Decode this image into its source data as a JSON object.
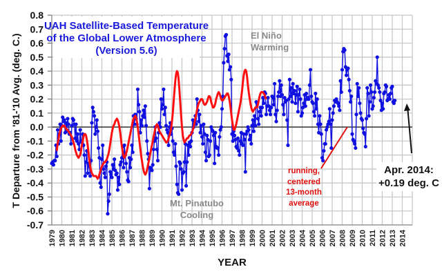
{
  "chart_data": {
    "type": "line",
    "title": [
      "UAH Satellite-Based Temperature",
      "of the Global Lower Atmosphere",
      "(Version 5.6)"
    ],
    "xlabel": "YEAR",
    "ylabel": "T Departure from '81-'10 Avg. (deg. C.)",
    "ylim": [
      -0.7,
      0.8
    ],
    "xlim": [
      1979,
      2015
    ],
    "yticks": [
      "0.8",
      "0.7",
      "0.6",
      "0.5",
      "0.4",
      "0.3",
      "0.2",
      "0.1",
      "0.0",
      "-0.1",
      "-0.2",
      "-0.3",
      "-0.4",
      "-0.5",
      "-0.6",
      "-0.7"
    ],
    "ytick_values": [
      0.8,
      0.7,
      0.6,
      0.5,
      0.4,
      0.3,
      0.2,
      0.1,
      0.0,
      -0.1,
      -0.2,
      -0.3,
      -0.4,
      -0.5,
      -0.6,
      -0.7
    ],
    "xticks": [
      "1979",
      "1980",
      "1981",
      "1982",
      "1983",
      "1984",
      "1985",
      "1986",
      "1987",
      "1988",
      "1989",
      "1990",
      "1991",
      "1992",
      "1993",
      "1994",
      "1995",
      "1996",
      "1997",
      "1998",
      "1999",
      "2000",
      "2001",
      "2002",
      "2003",
      "2004",
      "2005",
      "2006",
      "2007",
      "2008",
      "2009",
      "2010",
      "2011",
      "2012",
      "2013",
      "2014"
    ],
    "grid": true,
    "series": [
      {
        "name": "Monthly anomaly",
        "color": "#1010e0",
        "start": 1979.0,
        "step_years": 0.08333,
        "values": [
          -0.26,
          -0.25,
          -0.27,
          -0.24,
          -0.24,
          -0.13,
          -0.21,
          -0.02,
          -0.12,
          -0.05,
          0.02,
          -0.1,
          0.01,
          0.07,
          0.04,
          0.05,
          -0.04,
          0.03,
          -0.03,
          0.06,
          0.02,
          -0.05,
          -0.04,
          -0.12,
          0.01,
          0.06,
          0.05,
          0.02,
          -0.08,
          0.02,
          -0.1,
          -0.05,
          -0.12,
          -0.16,
          -0.02,
          -0.1,
          -0.11,
          -0.05,
          -0.13,
          -0.2,
          -0.35,
          -0.25,
          -0.17,
          -0.33,
          -0.26,
          -0.28,
          -0.35,
          -0.24,
          0.03,
          0.14,
          0.11,
          0.08,
          -0.05,
          0.0,
          0.05,
          -0.03,
          -0.15,
          -0.22,
          -0.4,
          -0.43,
          -0.23,
          -0.13,
          -0.3,
          -0.33,
          -0.36,
          -0.28,
          -0.25,
          -0.62,
          -0.53,
          -0.48,
          -0.32,
          -0.34,
          -0.36,
          -0.27,
          -0.3,
          -0.23,
          -0.31,
          -0.34,
          -0.33,
          -0.45,
          -0.36,
          -0.41,
          -0.27,
          -0.25,
          -0.22,
          -0.14,
          -0.29,
          -0.13,
          -0.2,
          -0.26,
          -0.32,
          -0.38,
          -0.39,
          -0.22,
          -0.29,
          -0.23,
          -0.13,
          -0.18,
          0.08,
          0.02,
          0.09,
          0.06,
          0.02,
          0.27,
          0.16,
          0.11,
          -0.04,
          0.05,
          0.01,
          0.08,
          0.12,
          0.07,
          0.15,
          0.01,
          -0.1,
          -0.19,
          -0.23,
          -0.44,
          -0.29,
          -0.3,
          -0.31,
          -0.27,
          -0.16,
          -0.1,
          0.0,
          -0.08,
          -0.16,
          -0.24,
          -0.04,
          0.03,
          0.0,
          0.2,
          0.13,
          0.16,
          0.27,
          0.09,
          0.14,
          0.01,
          -0.02,
          -0.04,
          -0.13,
          0.0,
          0.03,
          -0.05,
          -0.01,
          -0.1,
          -0.18,
          -0.2,
          -0.12,
          -0.28,
          -0.41,
          -0.47,
          -0.48,
          -0.25,
          -0.26,
          -0.3,
          -0.45,
          -0.33,
          -0.32,
          -0.25,
          -0.12,
          -0.42,
          -0.25,
          -0.13,
          -0.2,
          -0.11,
          -0.14,
          -0.1,
          -0.04,
          0.05,
          0.0,
          0.03,
          0.08,
          0.02,
          0.2,
          0.12,
          0.04,
          0.09,
          -0.04,
          0.01,
          -0.07,
          -0.12,
          0.02,
          -0.05,
          -0.18,
          -0.24,
          -0.06,
          -0.09,
          -0.21,
          -0.2,
          -0.1,
          0.0,
          -0.02,
          -0.03,
          -0.06,
          -0.26,
          -0.04,
          -0.14,
          -0.15,
          -0.15,
          -0.2,
          -0.07,
          -0.02,
          0.0,
          0.13,
          0.22,
          0.46,
          0.56,
          0.65,
          0.66,
          0.51,
          0.47,
          0.52,
          0.41,
          0.43,
          0.34,
          -0.05,
          -0.1,
          -0.03,
          -0.06,
          -0.09,
          -0.14,
          -0.15,
          -0.08,
          -0.17,
          -0.2,
          -0.1,
          -0.04,
          -0.12,
          -0.13,
          -0.05,
          -0.09,
          -0.32,
          -0.05,
          -0.03,
          0.0,
          -0.02,
          -0.09,
          -0.06,
          -0.12,
          0.01,
          0.05,
          -0.03,
          0.08,
          0.01,
          0.18,
          0.17,
          0.06,
          0.02,
          0.11,
          0.14,
          0.08,
          0.14,
          0.21,
          0.17,
          0.25,
          0.24,
          0.09,
          0.15,
          0.21,
          0.15,
          0.12,
          0.09,
          0.14,
          0.22,
          0.21,
          0.16,
          0.31,
          0.09,
          0.04,
          0.12,
          0.22,
          0.25,
          0.33,
          0.22,
          0.3,
          0.23,
          0.16,
          0.09,
          0.21,
          0.18,
          0.19,
          0.05,
          -0.13,
          0.2,
          0.34,
          0.22,
          0.28,
          0.18,
          0.31,
          0.24,
          0.26,
          0.17,
          0.23,
          0.29,
          0.11,
          0.23,
          0.27,
          0.2,
          0.08,
          0.1,
          0.14,
          0.17,
          0.23,
          0.15,
          0.24,
          0.2,
          0.21,
          0.2,
          0.3,
          0.41,
          0.22,
          0.18,
          0.17,
          0.11,
          0.08,
          0.24,
          0.13,
          0.2,
          0.02,
          -0.04,
          0.08,
          0.02,
          -0.05,
          -0.22,
          -0.24,
          -0.17,
          -0.12,
          -0.12,
          -0.02,
          0.0,
          0.02,
          0.04,
          0.13,
          0.02,
          -0.15,
          0.05,
          0.1,
          0.15,
          0.19,
          0.18,
          0.2,
          0.18,
          0.17,
          0.15,
          0.12,
          0.33,
          0.25,
          0.41,
          0.54,
          0.56,
          0.55,
          0.43,
          0.37,
          0.41,
          0.42,
          0.34,
          0.26,
          0.18,
          0.22,
          -0.05,
          -0.09,
          -0.1,
          -0.12,
          -0.15,
          0.09,
          0.31,
          0.22,
          0.28,
          0.17,
          0.1,
          0.06,
          0.05,
          -0.01,
          -0.04,
          -0.05,
          -0.14,
          0.06,
          0.28,
          0.24,
          0.08,
          0.18,
          0.3,
          0.25,
          0.13,
          0.15,
          0.21,
          0.25,
          0.33,
          0.31,
          0.5,
          0.3,
          0.28,
          0.25,
          0.19,
          0.12,
          0.17,
          0.13,
          0.24,
          0.25,
          0.3,
          0.29,
          0.19,
          0.2,
          0.23,
          0.2,
          0.24,
          0.28,
          0.29,
          0.18,
          0.17,
          0.19
        ]
      },
      {
        "name": "running, centered 13-month average",
        "color": "#ff1010",
        "start": 1979.5,
        "step_years": 0.08333,
        "values": [
          -0.17,
          -0.12,
          -0.09,
          -0.05,
          -0.03,
          -0.01,
          0.0,
          0.01,
          0.01,
          0.01,
          0.0,
          -0.01,
          -0.02,
          -0.02,
          -0.03,
          -0.04,
          -0.05,
          -0.06,
          -0.07,
          -0.09,
          -0.11,
          -0.13,
          -0.16,
          -0.18,
          -0.2,
          -0.21,
          -0.22,
          -0.21,
          -0.2,
          -0.17,
          -0.13,
          -0.1,
          -0.07,
          -0.05,
          -0.05,
          -0.06,
          -0.09,
          -0.13,
          -0.18,
          -0.24,
          -0.28,
          -0.31,
          -0.33,
          -0.34,
          -0.35,
          -0.35,
          -0.35,
          -0.35,
          -0.36,
          -0.37,
          -0.36,
          -0.34,
          -0.32,
          -0.3,
          -0.28,
          -0.27,
          -0.26,
          -0.25,
          -0.25,
          -0.24,
          -0.23,
          -0.21,
          -0.19,
          -0.16,
          -0.12,
          -0.08,
          -0.04,
          -0.01,
          0.01,
          0.02,
          0.04,
          0.05,
          0.06,
          0.05,
          0.03,
          0.0,
          -0.04,
          -0.09,
          -0.14,
          -0.18,
          -0.21,
          -0.22,
          -0.21,
          -0.19,
          -0.17,
          -0.14,
          -0.11,
          -0.08,
          -0.05,
          -0.02,
          0.01,
          0.04,
          0.06,
          0.07,
          0.08,
          0.07,
          0.04,
          0.0,
          -0.05,
          -0.1,
          -0.15,
          -0.2,
          -0.24,
          -0.28,
          -0.31,
          -0.33,
          -0.34,
          -0.33,
          -0.31,
          -0.28,
          -0.25,
          -0.22,
          -0.19,
          -0.16,
          -0.13,
          -0.1,
          -0.07,
          -0.04,
          -0.01,
          0.01,
          0.02,
          0.01,
          -0.01,
          -0.03,
          -0.04,
          -0.05,
          -0.06,
          -0.07,
          -0.08,
          -0.09,
          -0.1,
          -0.11,
          -0.11,
          -0.1,
          -0.08,
          -0.06,
          -0.04,
          -0.01,
          0.04,
          0.1,
          0.18,
          0.26,
          0.33,
          0.38,
          0.4,
          0.39,
          0.34,
          0.26,
          0.17,
          0.08,
          0.0,
          -0.06,
          -0.09,
          -0.11,
          -0.1,
          -0.09,
          -0.08,
          -0.08,
          -0.07,
          -0.06,
          -0.06,
          -0.05,
          -0.04,
          -0.02,
          0.0,
          0.03,
          0.06,
          0.09,
          0.12,
          0.15,
          0.17,
          0.18,
          0.19,
          0.2,
          0.2,
          0.19,
          0.17,
          0.16,
          0.16,
          0.17,
          0.18,
          0.2,
          0.22,
          0.22,
          0.21,
          0.18,
          0.16,
          0.14,
          0.14,
          0.15,
          0.17,
          0.2,
          0.22,
          0.24,
          0.25,
          0.24,
          0.22,
          0.2,
          0.19,
          0.19,
          0.2,
          0.21,
          0.22,
          0.23,
          0.24,
          0.24,
          0.22,
          0.19,
          0.15,
          0.1,
          0.05,
          0.01,
          -0.02,
          -0.02,
          0.0,
          0.02,
          0.05,
          0.08,
          0.11,
          0.14,
          0.17,
          0.21,
          0.26,
          0.32,
          0.37,
          0.4,
          0.41,
          0.4,
          0.36,
          0.3,
          0.25,
          0.21,
          0.17,
          0.14,
          0.12,
          0.11,
          0.12,
          0.13,
          0.14,
          0.14,
          0.14,
          0.16,
          0.19,
          0.22,
          0.24,
          0.25,
          0.25,
          0.25,
          0.24,
          0.23,
          0.21,
          0.2
        ]
      }
    ],
    "annotations": {
      "el_nino": [
        "El Niño",
        "Warming"
      ],
      "pinatubo": [
        "Mt. Pinatubo",
        "Cooling"
      ],
      "running_avg": [
        "running,",
        "centered",
        "13-month",
        "average"
      ],
      "latest": [
        "Apr. 2014:",
        "+0.19 deg. C"
      ]
    }
  }
}
